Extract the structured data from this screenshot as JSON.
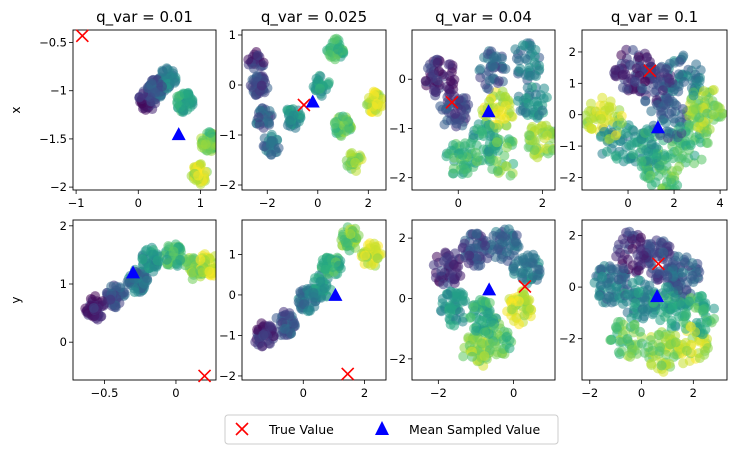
{
  "figure": {
    "legend": {
      "items": [
        {
          "label": "True Value",
          "marker": "x",
          "color": "#ff0000"
        },
        {
          "label": "Mean Sampled Value",
          "marker": "triangle",
          "color": "#0000ff"
        }
      ]
    }
  },
  "chart_data": [
    {
      "type": "scatter",
      "title": "q_var = 0.01",
      "xlabel": "",
      "ylabel": "x",
      "xlim": [
        -1.05,
        1.25
      ],
      "ylim": [
        -2.03,
        -0.37
      ],
      "xticks": [
        -1,
        0,
        1
      ],
      "yticks": [
        -2.0,
        -1.5,
        -1.0,
        -0.5
      ],
      "true_value": [
        -0.9,
        -0.43
      ],
      "mean_sampled": [
        0.65,
        -1.45
      ]
    },
    {
      "type": "scatter",
      "title": "q_var = 0.025",
      "xlabel": "",
      "ylabel": "",
      "xlim": [
        -3.0,
        2.7
      ],
      "ylim": [
        -2.1,
        1.1
      ],
      "xticks": [
        -2,
        0,
        2
      ],
      "yticks": [
        -2,
        -1,
        0,
        1
      ],
      "true_value": [
        -0.55,
        -0.4
      ],
      "mean_sampled": [
        -0.2,
        -0.33
      ]
    },
    {
      "type": "scatter",
      "title": "q_var = 0.04",
      "xlabel": "",
      "ylabel": "",
      "xlim": [
        -1.1,
        2.3
      ],
      "ylim": [
        -2.25,
        1.0
      ],
      "xticks": [
        0,
        2
      ],
      "yticks": [
        -2,
        -1,
        0
      ],
      "true_value": [
        -0.15,
        -0.47
      ],
      "mean_sampled": [
        0.72,
        -0.65
      ]
    },
    {
      "type": "scatter",
      "title": "q_var = 0.1",
      "xlabel": "",
      "ylabel": "",
      "xlim": [
        -2.0,
        4.3
      ],
      "ylim": [
        -2.4,
        2.7
      ],
      "xticks": [
        0,
        2,
        4
      ],
      "yticks": [
        -2,
        -1,
        0,
        1,
        2
      ],
      "true_value": [
        0.95,
        1.4
      ],
      "mean_sampled": [
        1.3,
        -0.4
      ]
    },
    {
      "type": "scatter",
      "title": "",
      "xlabel": "",
      "ylabel": "y",
      "xlim": [
        -0.72,
        0.28
      ],
      "ylim": [
        -0.65,
        2.1
      ],
      "xticks": [
        -0.5,
        0.0
      ],
      "yticks": [
        0,
        1,
        2
      ],
      "true_value": [
        0.2,
        -0.58
      ],
      "mean_sampled": [
        -0.3,
        1.2
      ]
    },
    {
      "type": "scatter",
      "title": "",
      "xlabel": "",
      "ylabel": "",
      "xlim": [
        -2.0,
        2.7
      ],
      "ylim": [
        -2.1,
        1.85
      ],
      "xticks": [
        0,
        2
      ],
      "yticks": [
        -2,
        -1,
        0,
        1
      ],
      "true_value": [
        1.45,
        -1.95
      ],
      "mean_sampled": [
        1.05,
        0.0
      ]
    },
    {
      "type": "scatter",
      "title": "",
      "xlabel": "",
      "ylabel": "",
      "xlim": [
        -2.7,
        1.1
      ],
      "ylim": [
        -2.7,
        2.6
      ],
      "xticks": [
        -2,
        0
      ],
      "yticks": [
        -2,
        0,
        2
      ],
      "true_value": [
        0.3,
        0.4
      ],
      "mean_sampled": [
        -0.65,
        0.3
      ]
    },
    {
      "type": "scatter",
      "title": "",
      "xlabel": "",
      "ylabel": "",
      "xlim": [
        -2.3,
        3.3
      ],
      "ylim": [
        -3.6,
        2.6
      ],
      "xticks": [
        -2,
        0,
        2
      ],
      "yticks": [
        -2,
        0,
        2
      ],
      "true_value": [
        0.65,
        0.9
      ],
      "mean_sampled": [
        0.6,
        -0.35
      ]
    }
  ]
}
